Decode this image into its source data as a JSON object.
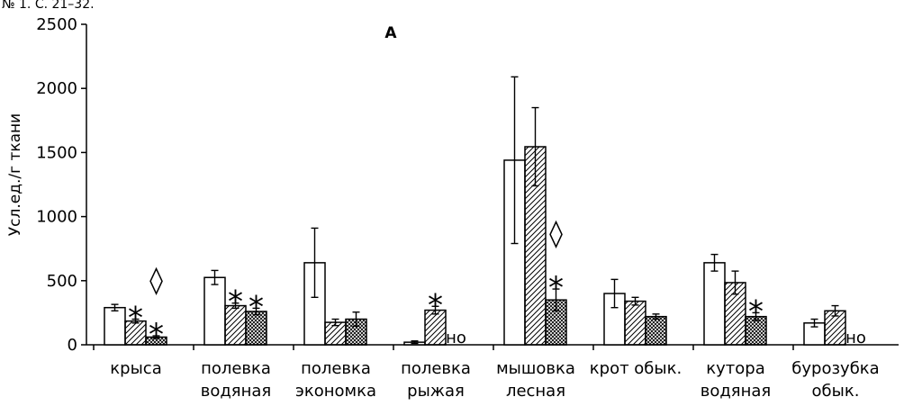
{
  "header_text": "№ 1. С. 21–32.",
  "chart_data": {
    "type": "bar",
    "title": "А",
    "ylabel": "Усл.ед./г ткани",
    "xlabel": "",
    "ylim": [
      0,
      2500
    ],
    "yticks": [
      0,
      500,
      1000,
      1500,
      2000,
      2500
    ],
    "ytick_labels": [
      "0",
      "500",
      "1000",
      "1500",
      "2000",
      "2500"
    ],
    "grid": false,
    "legend": "none",
    "categories": [
      [
        "крыса"
      ],
      [
        "полевка",
        "водяная"
      ],
      [
        "полевка",
        "экономка"
      ],
      [
        "полевка",
        "рыжая"
      ],
      [
        "мышовка",
        "лесная"
      ],
      [
        "крот обык."
      ],
      [
        "кутора",
        "водяная"
      ],
      [
        "бурозубка",
        "обык."
      ]
    ],
    "series": [
      {
        "pattern": "open",
        "values": [
          290,
          525,
          640,
          20,
          1440,
          400,
          640,
          170
        ],
        "errors": [
          25,
          55,
          270,
          10,
          650,
          110,
          65,
          30
        ]
      },
      {
        "pattern": "hatched",
        "values": [
          185,
          305,
          175,
          270,
          1545,
          340,
          485,
          265
        ],
        "errors": [
          15,
          20,
          25,
          30,
          305,
          30,
          90,
          40
        ]
      },
      {
        "pattern": "cross-hatched",
        "values": [
          60,
          260,
          200,
          null,
          350,
          220,
          220,
          null
        ],
        "errors": [
          10,
          25,
          55,
          null,
          85,
          20,
          30,
          null
        ]
      }
    ],
    "annotations": [
      {
        "category": 0,
        "series": 1,
        "text": "*"
      },
      {
        "category": 0,
        "series": 2,
        "text": "*"
      },
      {
        "category": 0,
        "series": 2,
        "text": "◊"
      },
      {
        "category": 1,
        "series": 1,
        "text": "*"
      },
      {
        "category": 1,
        "series": 2,
        "text": "*"
      },
      {
        "category": 3,
        "series": 1,
        "text": "*"
      },
      {
        "category": 3,
        "series": 2,
        "text": "но"
      },
      {
        "category": 4,
        "series": 2,
        "text": "*"
      },
      {
        "category": 4,
        "series": 2,
        "text": "◊"
      },
      {
        "category": 6,
        "series": 2,
        "text": "*"
      },
      {
        "category": 7,
        "series": 2,
        "text": "но"
      }
    ]
  }
}
